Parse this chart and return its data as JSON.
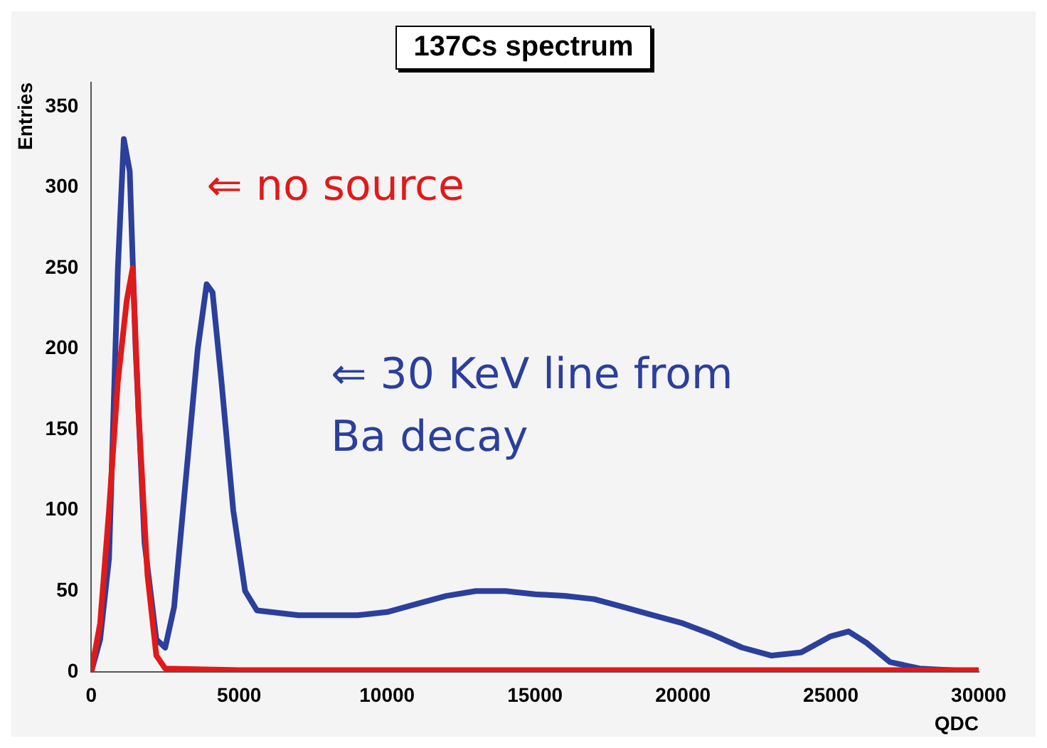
{
  "chart_data": {
    "type": "line",
    "title": "137Cs spectrum",
    "xlabel": "QDC",
    "ylabel": "Entries",
    "xlim": [
      0,
      30000
    ],
    "xticks": [
      0,
      5000,
      10000,
      15000,
      20000,
      25000,
      30000
    ],
    "ylim": [
      0,
      365
    ],
    "yticks": [
      0,
      50,
      100,
      150,
      200,
      250,
      300,
      350
    ],
    "grid": false,
    "legend": false,
    "marker": "none",
    "line_style": "solid",
    "series": [
      {
        "color": "#e01a1a",
        "x": [
          0,
          300,
          600,
          900,
          1200,
          1400,
          1600,
          1900,
          2200,
          2500,
          5000,
          10000,
          15000,
          20000,
          25000,
          30000
        ],
        "values": [
          0,
          30,
          100,
          180,
          230,
          250,
          160,
          60,
          10,
          2,
          1,
          1,
          1,
          1,
          1,
          1
        ]
      },
      {
        "color": "#2b3f9c",
        "x": [
          0,
          300,
          600,
          900,
          1100,
          1300,
          1500,
          1800,
          2200,
          2500,
          2800,
          3200,
          3600,
          3900,
          4100,
          4400,
          4800,
          5200,
          5600,
          7000,
          9000,
          10000,
          11000,
          12000,
          13000,
          14000,
          15000,
          16000,
          17000,
          18000,
          19000,
          20000,
          21000,
          22000,
          23000,
          24000,
          25000,
          25600,
          26200,
          27000,
          28000,
          29000,
          30000
        ],
        "values": [
          0,
          20,
          70,
          250,
          330,
          310,
          200,
          80,
          20,
          15,
          40,
          120,
          200,
          240,
          235,
          180,
          100,
          50,
          38,
          35,
          35,
          37,
          42,
          47,
          50,
          50,
          48,
          47,
          45,
          40,
          35,
          30,
          23,
          15,
          10,
          12,
          22,
          25,
          18,
          6,
          2,
          1,
          0
        ]
      }
    ],
    "annotations": [
      "⇐ no source",
      "⇐ 30 KeV line from Ba decay"
    ]
  }
}
